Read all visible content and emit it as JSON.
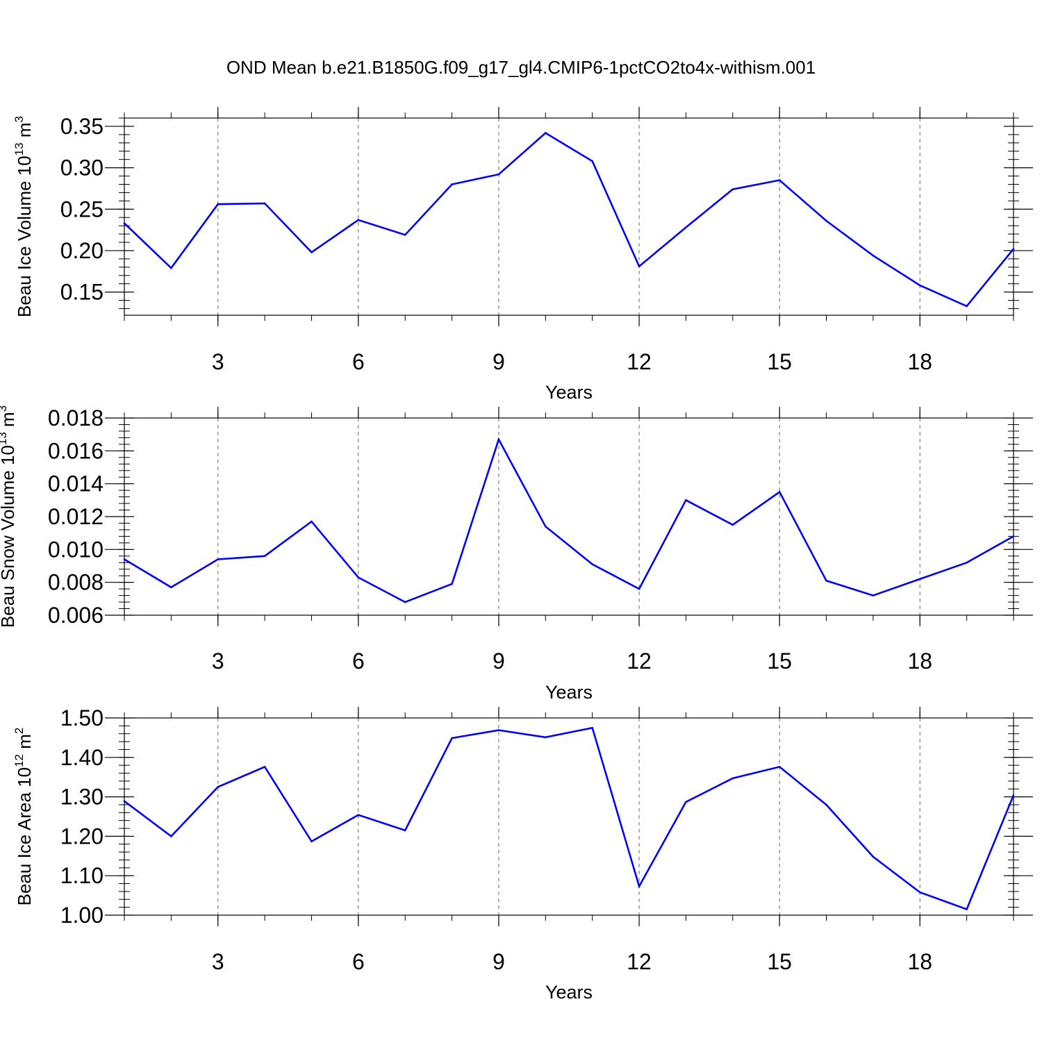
{
  "title": "OND Mean b.e21.B1850G.f09_g17_gl4.CMIP6-1pctCO2to4x-withism.001",
  "line_color": "#0000ff",
  "chart_data": [
    {
      "type": "line",
      "ylabel": {
        "prefix": "Beau Ice Volume 10",
        "exp": "13",
        "unit": " m",
        "unit_exp": "3"
      },
      "xlabel": "Years",
      "xlim": [
        1,
        20
      ],
      "ylim": [
        0.122,
        0.36
      ],
      "x_ticks": [
        "3",
        "6",
        "9",
        "12",
        "15",
        "18"
      ],
      "y_ticks": [
        "0.15",
        "0.20",
        "0.25",
        "0.30",
        "0.35"
      ],
      "grid": "vertical-dashed",
      "x": [
        1,
        2,
        3,
        4,
        5,
        6,
        7,
        8,
        9,
        10,
        11,
        12,
        13,
        14,
        15,
        16,
        17,
        18,
        19,
        20
      ],
      "values": [
        0.233,
        0.179,
        0.256,
        0.257,
        0.198,
        0.237,
        0.219,
        0.28,
        0.292,
        0.342,
        0.308,
        0.181,
        0.228,
        0.274,
        0.285,
        0.236,
        0.194,
        0.158,
        0.133,
        0.202
      ]
    },
    {
      "type": "line",
      "ylabel": {
        "prefix": "Beau Snow Volume 10",
        "exp": "13",
        "unit": " m",
        "unit_exp": "3"
      },
      "xlabel": "Years",
      "xlim": [
        1,
        20
      ],
      "ylim": [
        0.006,
        0.018
      ],
      "x_ticks": [
        "3",
        "6",
        "9",
        "12",
        "15",
        "18"
      ],
      "y_ticks": [
        "0.006",
        "0.008",
        "0.010",
        "0.012",
        "0.014",
        "0.016",
        "0.018"
      ],
      "grid": "vertical-dashed",
      "x": [
        1,
        2,
        3,
        4,
        5,
        6,
        7,
        8,
        9,
        10,
        11,
        12,
        13,
        14,
        15,
        16,
        17,
        18,
        19,
        20
      ],
      "values": [
        0.0094,
        0.0077,
        0.0094,
        0.0096,
        0.0117,
        0.0083,
        0.0068,
        0.0079,
        0.0167,
        0.0114,
        0.0091,
        0.0076,
        0.013,
        0.0115,
        0.0135,
        0.0081,
        0.0072,
        0.0082,
        0.0092,
        0.0108
      ]
    },
    {
      "type": "line",
      "ylabel": {
        "prefix": "Beau Ice Area 10",
        "exp": "12",
        "unit": " m",
        "unit_exp": "2"
      },
      "xlabel": "Years",
      "xlim": [
        1,
        20
      ],
      "ylim": [
        1.0,
        1.5
      ],
      "x_ticks": [
        "3",
        "6",
        "9",
        "12",
        "15",
        "18"
      ],
      "y_ticks": [
        "1.00",
        "1.10",
        "1.20",
        "1.30",
        "1.40",
        "1.50"
      ],
      "grid": "vertical-dashed",
      "x": [
        1,
        2,
        3,
        4,
        5,
        6,
        7,
        8,
        9,
        10,
        11,
        12,
        13,
        14,
        15,
        16,
        17,
        18,
        19,
        20
      ],
      "values": [
        1.289,
        1.2,
        1.325,
        1.376,
        1.187,
        1.254,
        1.215,
        1.449,
        1.469,
        1.451,
        1.475,
        1.073,
        1.287,
        1.347,
        1.376,
        1.28,
        1.148,
        1.058,
        1.015,
        1.304
      ]
    }
  ]
}
